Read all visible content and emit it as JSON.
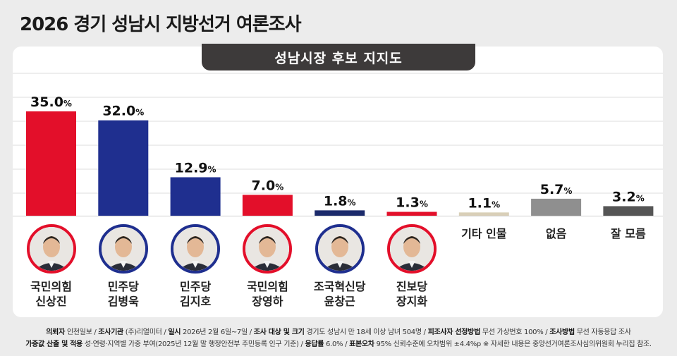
{
  "title": "2026 경기 성남시 지방선거 여론조사",
  "subtitle": "성남시장 후보 지지도",
  "chart_data": {
    "type": "bar",
    "title": "성남시장 후보 지지도",
    "unit": "%",
    "ylim": [
      0,
      40
    ],
    "categories": [
      "국민의힘 신상진",
      "민주당 김병욱",
      "민주당 김지호",
      "국민의힘 장영하",
      "조국혁신당 윤창근",
      "진보당 장지화",
      "기타 인물",
      "없음",
      "잘 모름"
    ],
    "values": [
      35.0,
      32.0,
      12.9,
      7.0,
      1.8,
      1.3,
      1.1,
      5.7,
      3.2
    ],
    "value_labels": [
      "35.0",
      "32.0",
      "12.9",
      "7.0",
      "1.8",
      "1.3",
      "1.1",
      "5.7",
      "3.2"
    ],
    "colors": [
      "#e30f2a",
      "#1f2f8f",
      "#1f2f8f",
      "#e30f2a",
      "#1b2a6b",
      "#e30f2a",
      "#d9cfb8",
      "#8f8f8f",
      "#555555"
    ],
    "grid": true
  },
  "candidates": [
    {
      "party": "국민의힘",
      "name": "신상진",
      "party_color": "#e30f2a"
    },
    {
      "party": "민주당",
      "name": "김병욱",
      "party_color": "#1f2f8f"
    },
    {
      "party": "민주당",
      "name": "김지호",
      "party_color": "#1f2f8f"
    },
    {
      "party": "국민의힘",
      "name": "장영하",
      "party_color": "#e30f2a"
    },
    {
      "party": "조국혁신당",
      "name": "윤창근",
      "party_color": "#1f2f8f"
    },
    {
      "party": "진보당",
      "name": "장지화",
      "party_color": "#e30f2a"
    }
  ],
  "other_labels": [
    "기타 인물",
    "없음",
    "잘 모름"
  ],
  "footer": {
    "line1": [
      {
        "k": "의뢰자",
        "v": "인천일보"
      },
      {
        "k": "조사기관",
        "v": "(주)리얼미터"
      },
      {
        "k": "일시",
        "v": "2026년 2월 6일~7일"
      },
      {
        "k": "조사 대상 및 크기",
        "v": "경기도 성남시 만 18세 이상 남녀 504명"
      },
      {
        "k": "피조사자 선정방법",
        "v": "무선 가상번호 100%"
      },
      {
        "k": "조사방법",
        "v": "무선 자동응답 조사"
      }
    ],
    "line2": [
      {
        "k": "가중값 산출 및 적용",
        "v": "성·연령·지역별 가중 부여(2025년 12월 말 행정안전부 주민등록 인구 기준)"
      },
      {
        "k": "응답률",
        "v": "6.0%"
      },
      {
        "k": "표본오차",
        "v": "95% 신뢰수준에 오차범위 ±4.4%p"
      }
    ],
    "note": "※ 자세한 내용은 중앙선거여론조사심의위원회 누리집 참조."
  }
}
